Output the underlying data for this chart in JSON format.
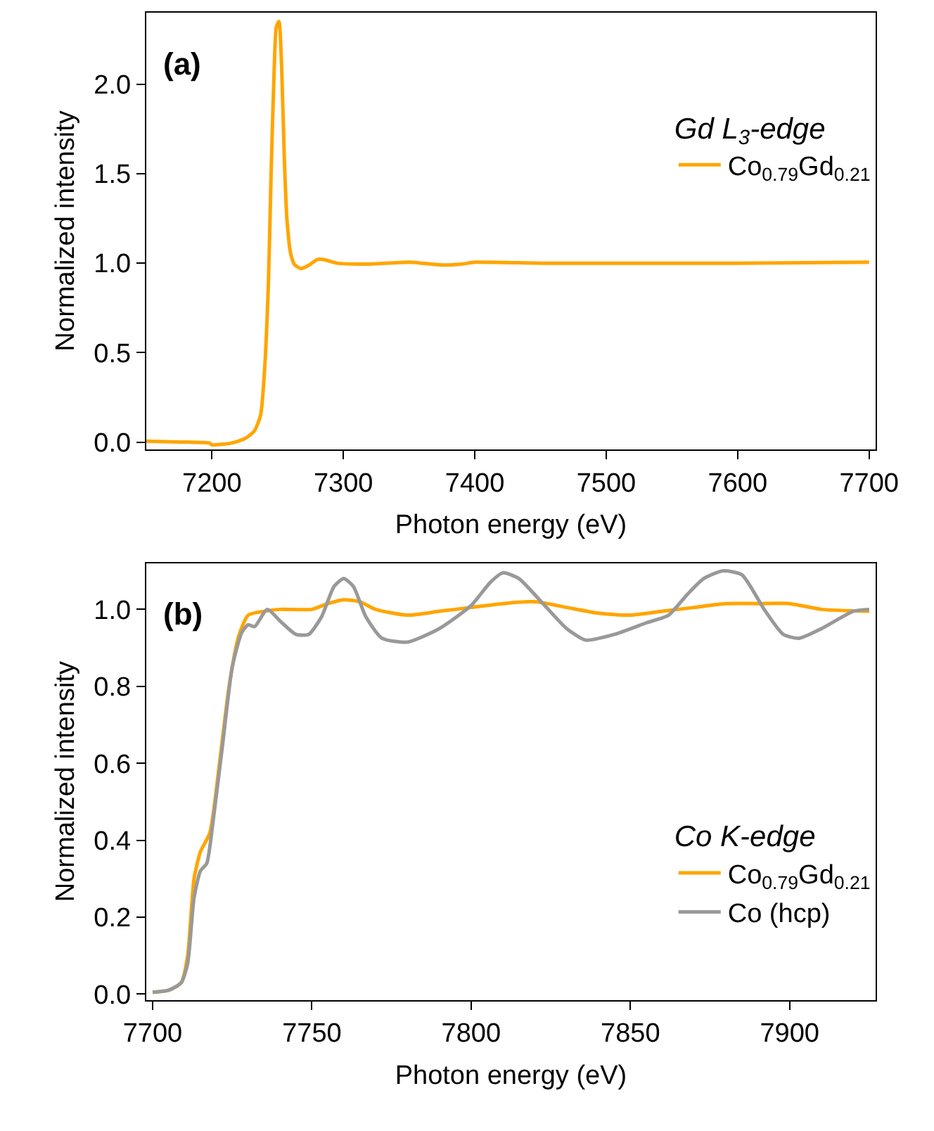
{
  "chart_data": [
    {
      "type": "line",
      "title": "(a)",
      "xlabel": "Photon energy (eV)",
      "ylabel": "Normalized intensity",
      "legend_title": "Gd L$_{3}$-edge",
      "legend": "top right",
      "line_style": "solid",
      "xlim": [
        7150,
        7705
      ],
      "xticks": [
        7200,
        7300,
        7400,
        7500,
        7600,
        7700
      ],
      "ylim": [
        -0.04,
        2.4
      ],
      "yticks": [
        {
          "value": 0,
          "label": "0.0"
        },
        0.5,
        {
          "value": 1,
          "label": "1.0"
        },
        1.5,
        {
          "value": 2,
          "label": "2.0"
        }
      ],
      "series": [
        {
          "name": "Co$_{0.79}$Gd$_{0.21}$",
          "color": "#ffa500",
          "x": [
            7150,
            7180,
            7198,
            7200,
            7215,
            7225,
            7232,
            7237,
            7240,
            7243,
            7245,
            7247,
            7249,
            7251,
            7253,
            7255,
            7257,
            7260,
            7263,
            7268,
            7274,
            7280,
            7285,
            7295,
            7320,
            7350,
            7360,
            7375,
            7390,
            7400,
            7450,
            7500,
            7600,
            7700
          ],
          "values": [
            0.005,
            0.0,
            -0.005,
            -0.015,
            -0.005,
            0.02,
            0.06,
            0.15,
            0.4,
            0.9,
            1.5,
            2.0,
            2.32,
            2.35,
            2.1,
            1.6,
            1.25,
            1.05,
            0.99,
            0.97,
            0.99,
            1.02,
            1.02,
            1.0,
            0.995,
            1.005,
            1.0,
            0.99,
            0.995,
            1.005,
            1.0,
            1.0,
            1.0,
            1.005
          ]
        }
      ]
    },
    {
      "type": "line",
      "title": "(b)",
      "xlabel": "Photon energy (eV)",
      "ylabel": "Normalized intensity",
      "legend_title": "Co K-edge",
      "legend": "bottom right",
      "line_style": "solid",
      "xlim": [
        7698,
        7927
      ],
      "xticks": [
        7700,
        7750,
        7800,
        7850,
        7900
      ],
      "ylim": [
        -0.015,
        1.12
      ],
      "yticks": [
        {
          "value": 0,
          "label": "0.0"
        },
        0.2,
        0.4,
        0.6,
        0.8,
        {
          "value": 1,
          "label": "1.0"
        }
      ],
      "series": [
        {
          "name": "Co$_{0.79}$Gd$_{0.21}$",
          "color": "#ffa500",
          "x": [
            7700,
            7705,
            7709,
            7711,
            7713,
            7715,
            7718,
            7721,
            7724,
            7727,
            7730,
            7735,
            7740,
            7750,
            7755,
            7760,
            7765,
            7770,
            7780,
            7790,
            7800,
            7810,
            7820,
            7830,
            7840,
            7850,
            7860,
            7870,
            7880,
            7890,
            7900,
            7910,
            7925
          ],
          "values": [
            0.005,
            0.01,
            0.03,
            0.1,
            0.3,
            0.37,
            0.42,
            0.6,
            0.8,
            0.93,
            0.985,
            0.995,
            1.0,
            1.0,
            1.015,
            1.025,
            1.02,
            1.0,
            0.985,
            0.995,
            1.005,
            1.015,
            1.02,
            1.005,
            0.99,
            0.985,
            0.995,
            1.005,
            1.015,
            1.015,
            1.015,
            1.0,
            0.995
          ]
        },
        {
          "name": "Co (hcp)",
          "color": "#999999",
          "x": [
            7700,
            7705,
            7709,
            7711,
            7713,
            7715,
            7717,
            7719,
            7722,
            7725,
            7728,
            7730,
            7732,
            7736,
            7740,
            7745,
            7749,
            7753,
            7757,
            7760,
            7763,
            7767,
            7772,
            7780,
            7790,
            7800,
            7806,
            7810,
            7815,
            7822,
            7830,
            7836,
            7845,
            7855,
            7862,
            7868,
            7873,
            7879,
            7885,
            7892,
            7898,
            7903,
            7910,
            7920,
            7925
          ],
          "values": [
            0.005,
            0.01,
            0.03,
            0.08,
            0.25,
            0.32,
            0.34,
            0.45,
            0.65,
            0.85,
            0.94,
            0.96,
            0.955,
            1.0,
            0.97,
            0.935,
            0.935,
            0.98,
            1.06,
            1.08,
            1.06,
            0.98,
            0.925,
            0.915,
            0.95,
            1.01,
            1.07,
            1.095,
            1.08,
            1.02,
            0.95,
            0.92,
            0.935,
            0.965,
            0.985,
            1.04,
            1.08,
            1.1,
            1.09,
            1.0,
            0.935,
            0.925,
            0.95,
            0.995,
            1.0
          ]
        }
      ]
    }
  ]
}
